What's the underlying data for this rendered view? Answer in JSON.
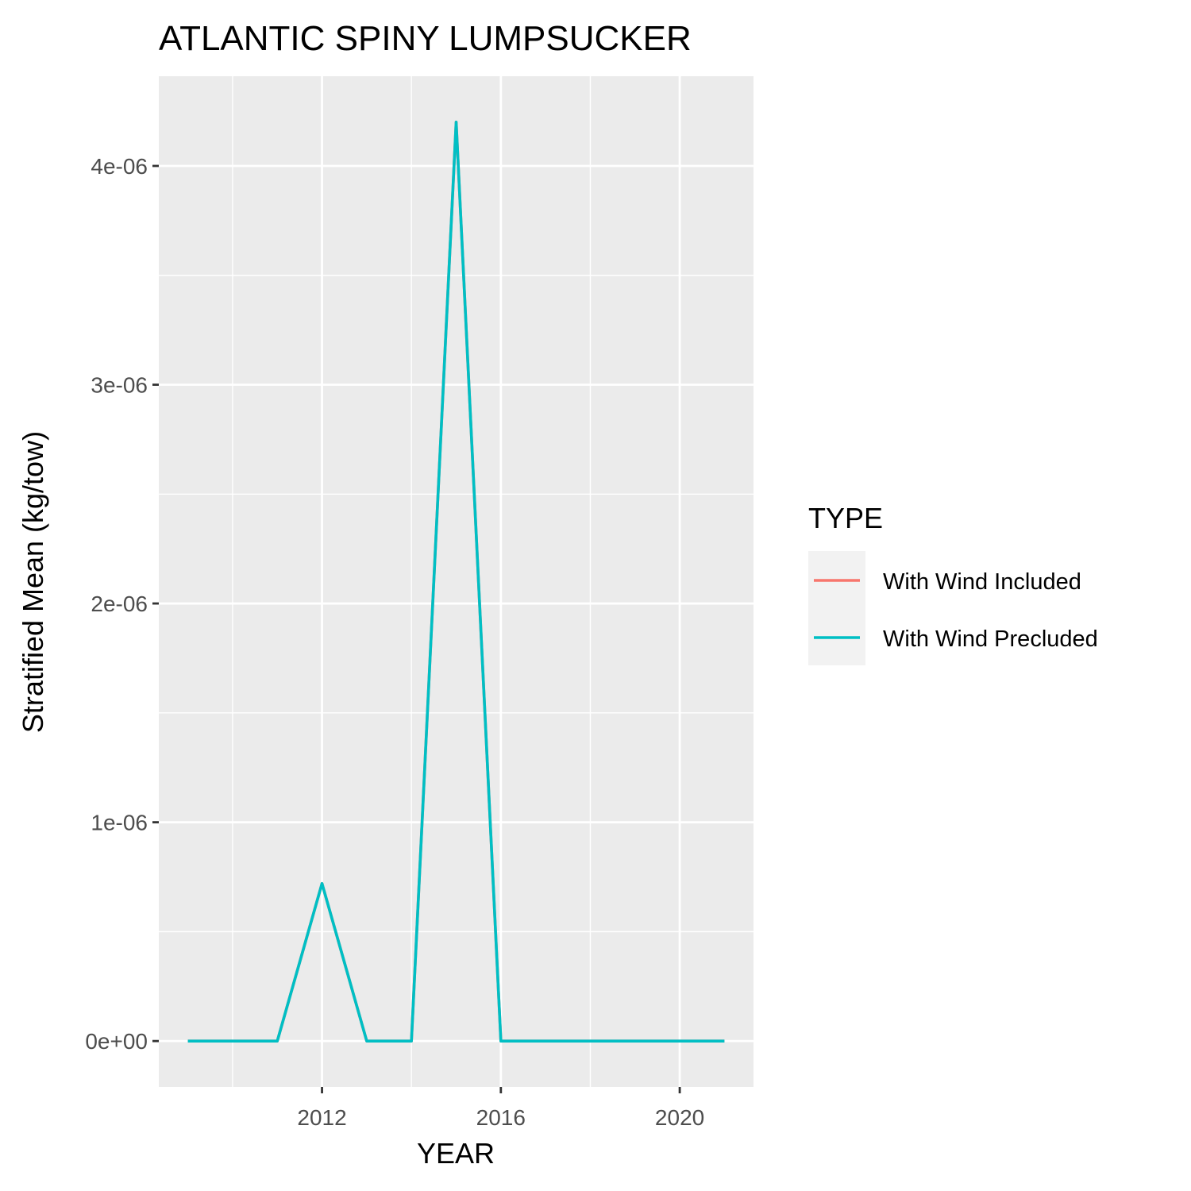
{
  "chart_data": {
    "type": "line",
    "title": "ATLANTIC SPINY LUMPSUCKER",
    "xlabel": "YEAR",
    "ylabel": "Stratified Mean (kg/tow)",
    "x": [
      2009,
      2010,
      2011,
      2012,
      2013,
      2014,
      2015,
      2016,
      2017,
      2018,
      2019,
      2020,
      2021
    ],
    "xlim": [
      2008.35,
      2021.65
    ],
    "ylim": [
      -2.1e-07,
      4.41e-06
    ],
    "x_ticks": [
      2012,
      2016,
      2020
    ],
    "x_tick_labels": [
      "2012",
      "2016",
      "2020"
    ],
    "x_minor_ticks": [
      2010,
      2014,
      2018
    ],
    "y_ticks": [
      0,
      1e-06,
      2e-06,
      3e-06,
      4e-06
    ],
    "y_tick_labels": [
      "0e+00",
      "1e-06",
      "2e-06",
      "3e-06",
      "4e-06"
    ],
    "y_minor_ticks": [
      5e-07,
      1.5e-06,
      2.5e-06,
      3.5e-06
    ],
    "grid": true,
    "legend": {
      "title": "TYPE",
      "placement": "right"
    },
    "series": [
      {
        "name": "With Wind Included",
        "color": "#F8766D",
        "values": [
          0,
          0,
          0,
          7.2e-07,
          0,
          0,
          4.2e-06,
          0,
          0,
          0,
          0,
          0,
          0
        ]
      },
      {
        "name": "With Wind Precluded",
        "color": "#00BFC4",
        "values": [
          0,
          0,
          0,
          7.2e-07,
          0,
          0,
          4.2e-06,
          0,
          0,
          0,
          0,
          0,
          0
        ]
      }
    ]
  }
}
